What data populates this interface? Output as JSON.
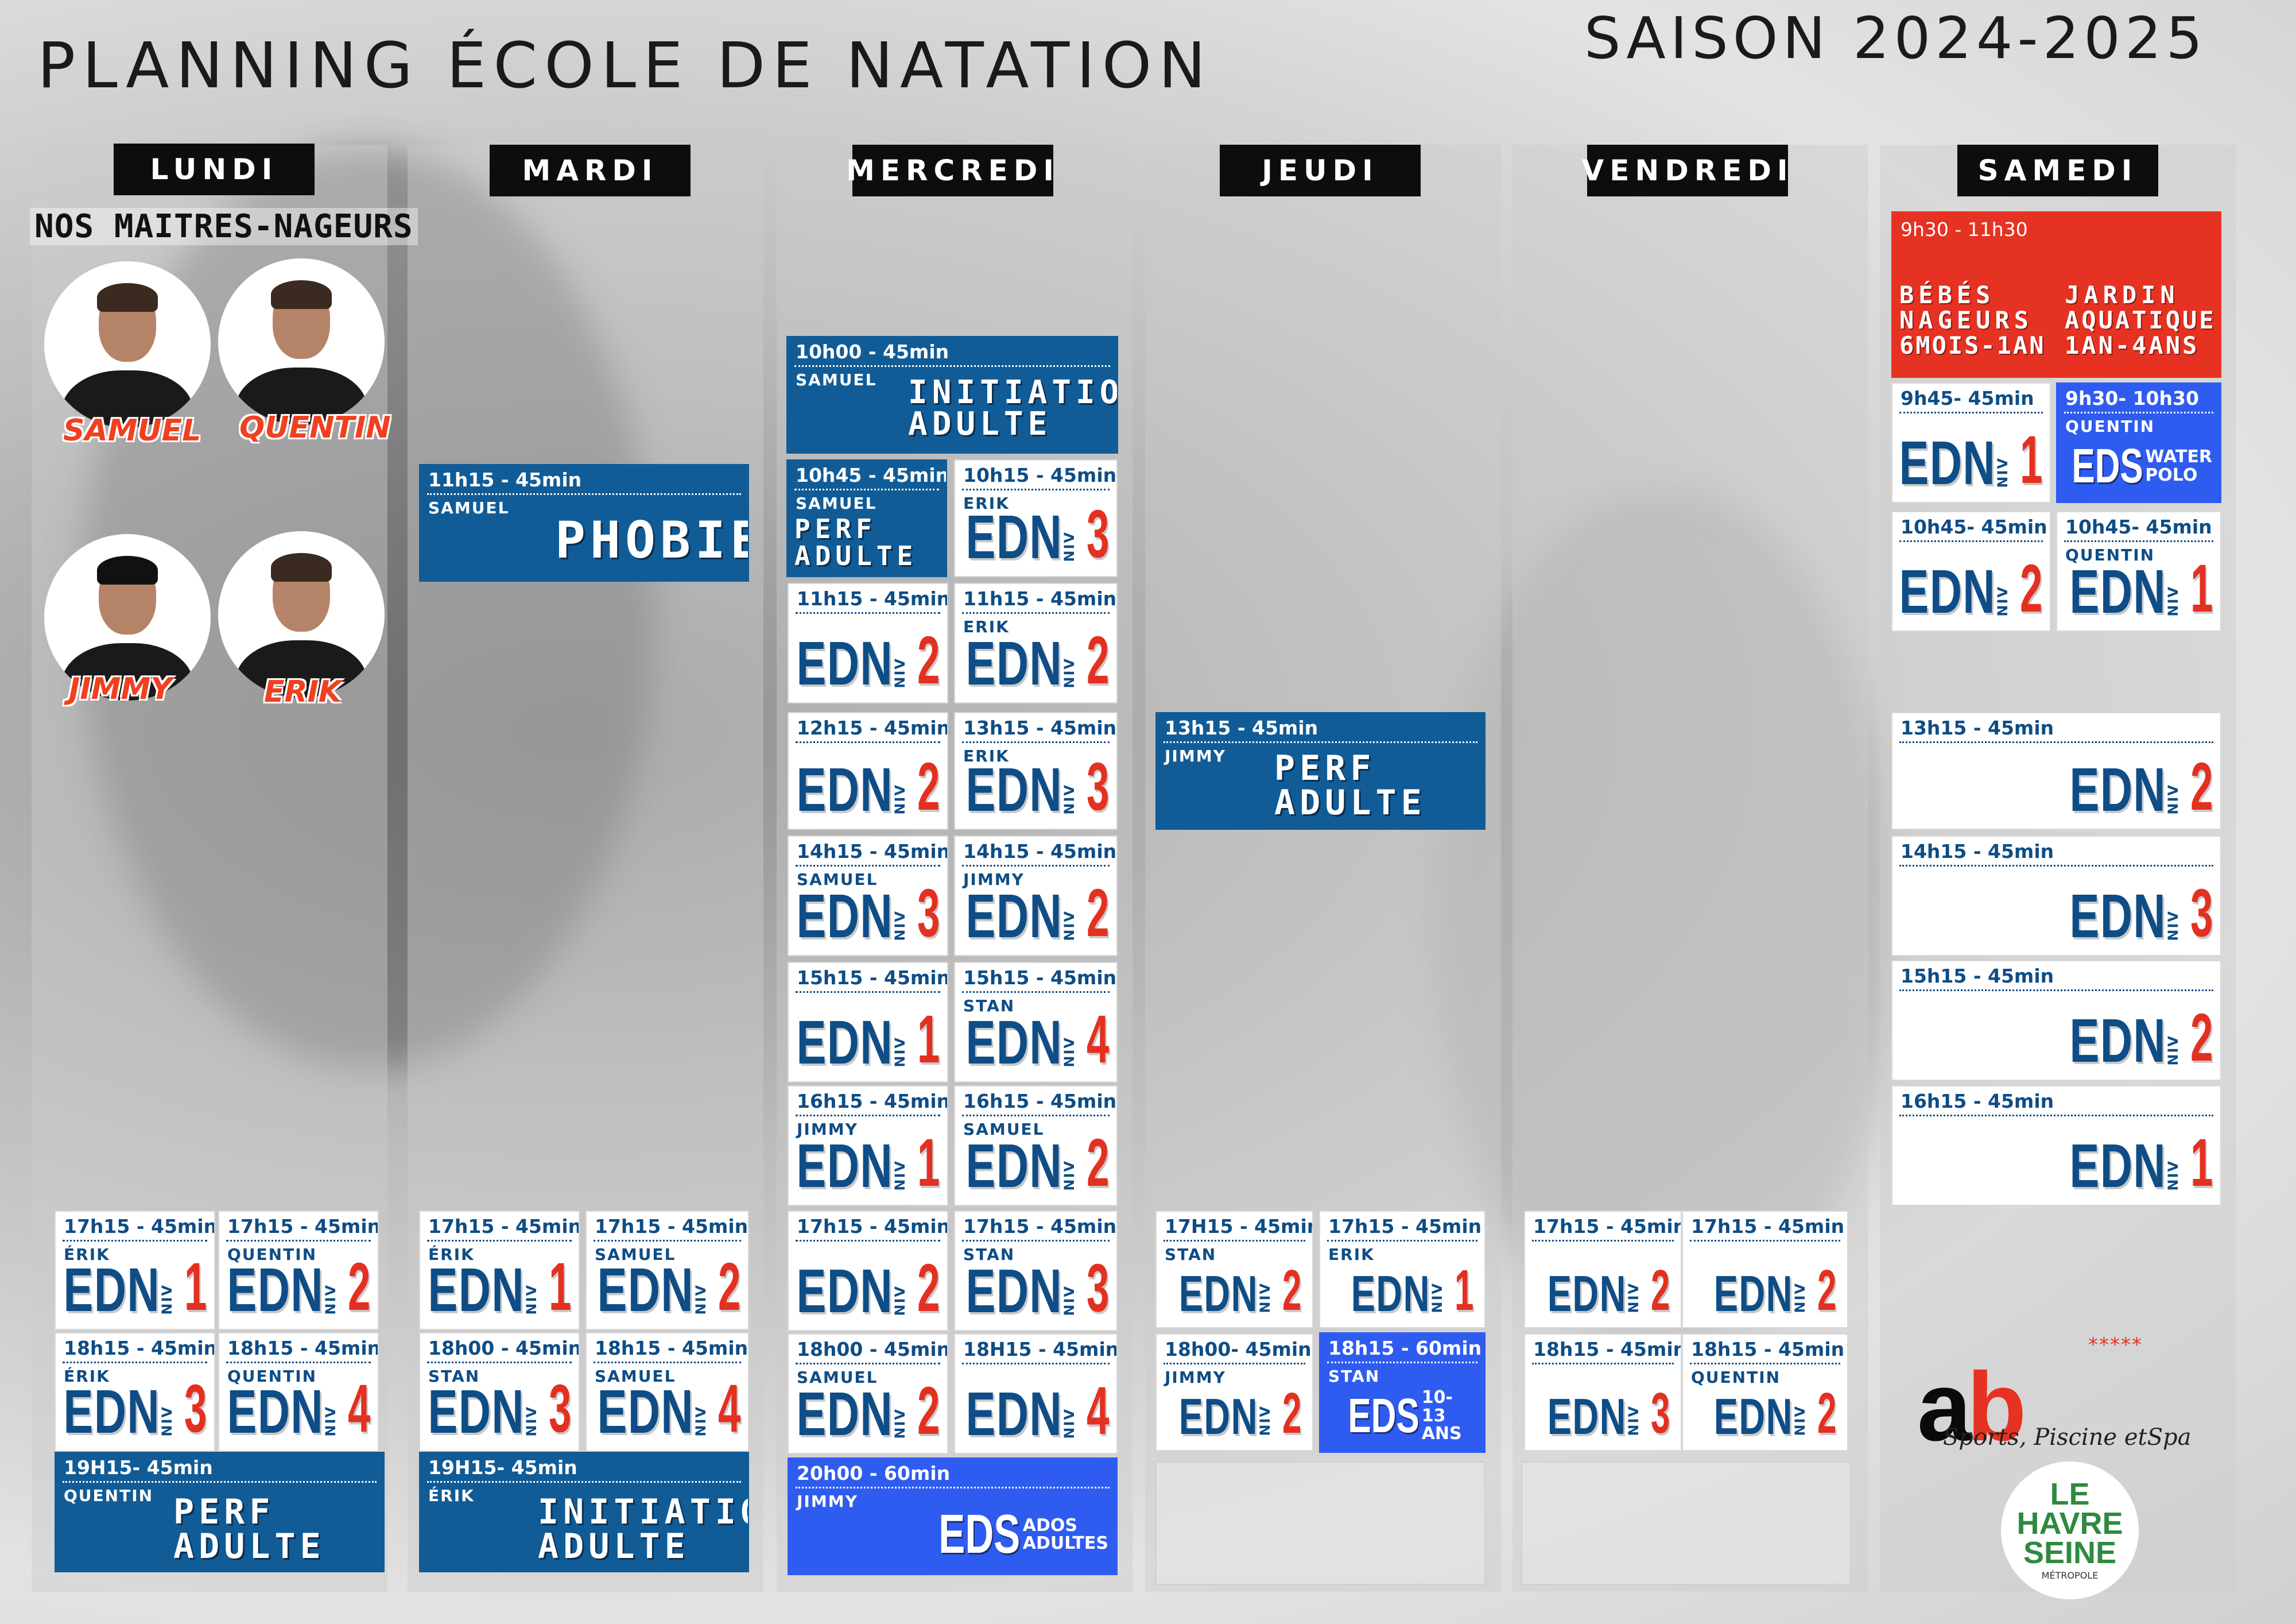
{
  "title": "PLANNING ÉCOLE DE NATATION",
  "season": "SAISON 2024-2025",
  "days": [
    "LUNDI",
    "MARDI",
    "MERCREDI",
    "JEUDI",
    "VENDREDI",
    "SAMEDI"
  ],
  "staff": {
    "title": "NOS MAITRES-NAGEURS",
    "names": [
      "SAMUEL",
      "QUENTIN",
      "JIMMY",
      "ERIK"
    ]
  },
  "edn": "EDN",
  "niv": "NIV",
  "eds": "EDS",
  "slots": {
    "mar_phobie": {
      "time": "11h15 - 45min",
      "coach": "SAMUEL",
      "label": "PHOBIE"
    },
    "mer_init": {
      "time": "10h00 - 45min",
      "coach": "SAMUEL",
      "label1": "INITIATION",
      "label2": "ADULTE"
    },
    "mer_perf": {
      "time": "10h45 - 45min",
      "coach": "SAMUEL",
      "label1": "PERF",
      "label2": "ADULTE"
    },
    "mer_a": {
      "time": "10h15 - 45min",
      "coach": "ERIK",
      "level": "3"
    },
    "mer_b": {
      "time": "11h15 - 45min",
      "coach": "",
      "level": "2"
    },
    "mer_c": {
      "time": "11h15 - 45min",
      "coach": "ERIK",
      "level": "2"
    },
    "mer_d": {
      "time": "12h15 - 45min",
      "coach": "",
      "level": "2"
    },
    "mer_e": {
      "time": "13h15 - 45min",
      "coach": "ERIK",
      "level": "3"
    },
    "mer_f": {
      "time": "14h15 - 45min",
      "coach": "SAMUEL",
      "level": "3"
    },
    "mer_g": {
      "time": "14h15 - 45min",
      "coach": "JIMMY",
      "level": "2"
    },
    "mer_h": {
      "time": "15h15 - 45min",
      "coach": "",
      "level": "1"
    },
    "mer_i": {
      "time": "15h15 - 45min",
      "coach": "STAN",
      "level": "4"
    },
    "mer_j": {
      "time": "16h15 - 45min",
      "coach": "JIMMY",
      "level": "1"
    },
    "mer_k": {
      "time": "16h15 - 45min",
      "coach": "SAMUEL",
      "level": "2"
    },
    "mer_l": {
      "time": "17h15 - 45min",
      "coach": "",
      "level": "2"
    },
    "mer_m": {
      "time": "17h15 - 45min",
      "coach": "STAN",
      "level": "3"
    },
    "mer_n": {
      "time": "18h00 - 45min",
      "coach": "SAMUEL",
      "level": "2"
    },
    "mer_o": {
      "time": "18H15 - 45min",
      "coach": "",
      "level": "4"
    },
    "mer_eds": {
      "time": "20h00 - 60min",
      "coach": "JIMMY",
      "s1": "ADOS",
      "s2": "ADULTES"
    },
    "lun_a": {
      "time": "17h15 - 45min",
      "coach": "ÉRIK",
      "level": "1"
    },
    "lun_b": {
      "time": "17h15 - 45min",
      "coach": "QUENTIN",
      "level": "2"
    },
    "lun_c": {
      "time": "18h15 - 45min",
      "coach": "ÉRIK",
      "level": "3"
    },
    "lun_d": {
      "time": "18h15 - 45min",
      "coach": "QUENTIN",
      "level": "4"
    },
    "lun_perf": {
      "time": "19H15- 45min",
      "coach": "QUENTIN",
      "label1": "PERF",
      "label2": "ADULTE"
    },
    "mar_a": {
      "time": "17h15 - 45min",
      "coach": "ÉRIK",
      "level": "1"
    },
    "mar_b": {
      "time": "17h15 - 45min",
      "coach": "SAMUEL",
      "level": "2"
    },
    "mar_c": {
      "time": "18h00 - 45min",
      "coach": "STAN",
      "level": "3"
    },
    "mar_d": {
      "time": "18h15 - 45min",
      "coach": "SAMUEL",
      "level": "4"
    },
    "mar_init": {
      "time": "19H15- 45min",
      "coach": "ÉRIK",
      "label1": "INITIATION",
      "label2": "ADULTE"
    },
    "jeu_perf": {
      "time": "13h15 - 45min",
      "coach": "JIMMY",
      "label1": "PERF",
      "label2": "ADULTE"
    },
    "jeu_a": {
      "time": "17H15 - 45min",
      "coach": "STAN",
      "level": "2"
    },
    "jeu_b": {
      "time": "17h15 - 45min",
      "coach": "ERIK",
      "level": "1"
    },
    "jeu_c": {
      "time": "18h00- 45min",
      "coach": "JIMMY",
      "level": "2"
    },
    "jeu_eds": {
      "time": "18h15 - 60min",
      "coach": "STAN",
      "s1": "10-13",
      "s2": "ANS"
    },
    "ven_a": {
      "time": "17h15 - 45min",
      "coach": "",
      "level": "2"
    },
    "ven_b": {
      "time": "17h15 - 45min",
      "coach": "",
      "level": "2"
    },
    "ven_c": {
      "time": "18h15 - 45min",
      "coach": "",
      "level": "3"
    },
    "ven_d": {
      "time": "18h15 - 45min",
      "coach": "QUENTIN",
      "level": "2"
    },
    "sam_bebe": {
      "time": "9h30 - 11h30",
      "l1": "BÉBÉS",
      "l2": "NAGEURS",
      "l3": "6MOIS-1AN",
      "r1": "JARDIN",
      "r2": "AQUATIQUE",
      "r3": "1AN-4ANS"
    },
    "sam_a": {
      "time": "9h45- 45min",
      "coach": "",
      "level": "1"
    },
    "sam_eds": {
      "time": "9h30- 10h30",
      "coach": "QUENTIN",
      "s1": "WATER",
      "s2": "POLO"
    },
    "sam_b": {
      "time": "10h45- 45min",
      "coach": "",
      "level": "2"
    },
    "sam_c": {
      "time": "10h45- 45min",
      "coach": "QUENTIN",
      "level": "1"
    },
    "sam_d": {
      "time": "13h15 - 45min",
      "coach": "",
      "level": "2"
    },
    "sam_e": {
      "time": "14h15 - 45min",
      "coach": "",
      "level": "3"
    },
    "sam_f": {
      "time": "15h15 - 45min",
      "coach": "",
      "level": "2"
    },
    "sam_g": {
      "time": "16h15 - 45min",
      "coach": "",
      "level": "1"
    }
  },
  "logos": {
    "ab_a": "a",
    "ab_b": "b",
    "ab_stars": "*****",
    "ab_tagline": "Sports, Piscine etSpa",
    "lhs1": "LE",
    "lhs2": "HAVRE",
    "lhs3": "SEINE",
    "lhs4": "MÉTROPOLE"
  }
}
